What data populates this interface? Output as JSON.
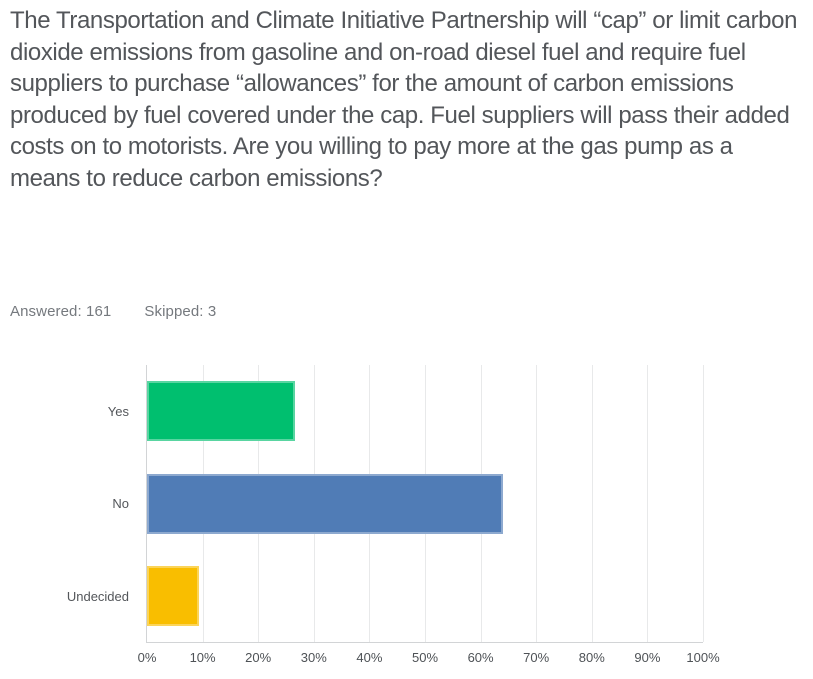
{
  "question": {
    "text": "The Transportation and Climate Initiative Partnership will “cap” or limit carbon dioxide emissions from gasoline and on-road diesel fuel and require fuel suppliers to purchase “allowances” for the amount of carbon emissions produced by fuel covered under the cap. Fuel suppliers will pass their added costs on to motorists. Are you willing to pay more at the gas pump as a means to reduce carbon emissions?"
  },
  "stats": {
    "answered": "Answered: 161",
    "skipped": "Skipped: 3"
  },
  "chart_data": {
    "type": "bar",
    "orientation": "horizontal",
    "title": "",
    "xlabel": "",
    "ylabel": "",
    "categories": [
      "Yes",
      "No",
      "Undecided"
    ],
    "values": [
      26.7,
      64.0,
      9.3
    ],
    "colors": [
      "#00BF6F",
      "#507CB6",
      "#F9BE00"
    ],
    "x_ticks": [
      "0%",
      "10%",
      "20%",
      "30%",
      "40%",
      "50%",
      "60%",
      "70%",
      "80%",
      "90%",
      "100%"
    ],
    "xlim": [
      0,
      100
    ],
    "grid": "vertical",
    "legend": "none"
  }
}
